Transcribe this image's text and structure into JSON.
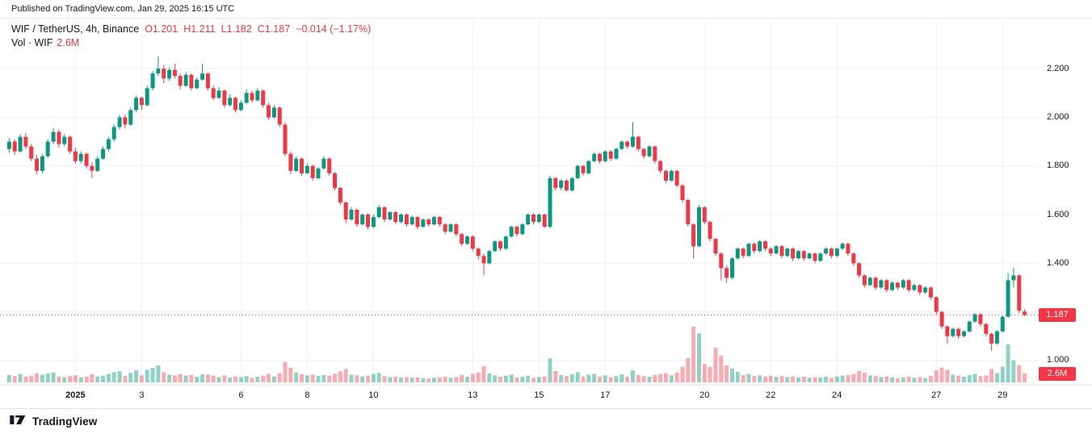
{
  "header": {
    "published": "Published on TradingView.com, Jan 29, 2025 16:15 UTC"
  },
  "legend": {
    "symbol": "WIF / TetherUS, 4h, Binance",
    "ohlc": [
      {
        "label": "O",
        "value": "1.201"
      },
      {
        "label": "H",
        "value": "1.211"
      },
      {
        "label": "L",
        "value": "1.182"
      },
      {
        "label": "C",
        "value": "1.187"
      }
    ],
    "change": "−0.014 (−1.17%)",
    "volume_label": "Vol · WIF",
    "volume_value": "2.6M"
  },
  "badges": {
    "last_price": {
      "label": "1.187",
      "value": 1.187
    },
    "volume": {
      "label": "2.6M"
    }
  },
  "footer": {
    "brand": "TradingView"
  },
  "colors": {
    "up": "#089981",
    "down": "#F23645",
    "vol_up": "rgba(8,153,129,0.45)",
    "vol_down": "rgba(242,54,69,0.42)",
    "grid": "#eef0f3",
    "border": "#e0e3eb",
    "text": "#131722",
    "badge_bg": "#F23645"
  },
  "chart_data": {
    "type": "candlestick",
    "symbol": "WIF / TetherUS",
    "interval": "4h",
    "exchange": "Binance",
    "ohlc_last": {
      "o": 1.201,
      "h": 1.211,
      "l": 1.182,
      "c": 1.187,
      "change": -0.014,
      "change_pct": -1.17
    },
    "volume_last_m": 2.6,
    "volume_unit": "M",
    "price_axis": {
      "range": [
        0.95,
        2.3
      ],
      "gridlines": [
        1.0,
        1.2,
        1.4,
        1.6,
        1.8,
        2.0,
        2.2
      ],
      "labels": [
        {
          "value": 2.2,
          "label": "2.200"
        },
        {
          "value": 2.0,
          "label": "2.000"
        },
        {
          "value": 1.8,
          "label": "1.800"
        },
        {
          "value": 1.6,
          "label": "1.600"
        },
        {
          "value": 1.4,
          "label": "1.400"
        },
        {
          "value": 1.0,
          "label": "1.000"
        }
      ]
    },
    "time_axis": {
      "ticks": [
        {
          "i": 12,
          "label": "2025",
          "bold": true
        },
        {
          "i": 24,
          "label": "3"
        },
        {
          "i": 42,
          "label": "6"
        },
        {
          "i": 54,
          "label": "8"
        },
        {
          "i": 66,
          "label": "10"
        },
        {
          "i": 84,
          "label": "13"
        },
        {
          "i": 96,
          "label": "15"
        },
        {
          "i": 108,
          "label": "17"
        },
        {
          "i": 126,
          "label": "20"
        },
        {
          "i": 138,
          "label": "22"
        },
        {
          "i": 150,
          "label": "24"
        },
        {
          "i": 168,
          "label": "27"
        },
        {
          "i": 180,
          "label": "29"
        }
      ]
    },
    "columns": [
      "open",
      "high",
      "low",
      "close",
      "volume_m"
    ],
    "candles": [
      [
        1.87,
        1.915,
        1.855,
        1.9,
        2.1
      ],
      [
        1.9,
        1.91,
        1.845,
        1.86,
        1.8
      ],
      [
        1.86,
        1.93,
        1.855,
        1.92,
        2.4
      ],
      [
        1.92,
        1.935,
        1.87,
        1.88,
        1.6
      ],
      [
        1.88,
        1.89,
        1.82,
        1.83,
        1.9
      ],
      [
        1.83,
        1.845,
        1.765,
        1.78,
        2.6
      ],
      [
        1.78,
        1.85,
        1.77,
        1.84,
        2.2
      ],
      [
        1.84,
        1.91,
        1.835,
        1.9,
        2.5
      ],
      [
        1.9,
        1.955,
        1.89,
        1.94,
        2.8
      ],
      [
        1.94,
        1.95,
        1.875,
        1.89,
        1.7
      ],
      [
        1.89,
        1.93,
        1.88,
        1.92,
        1.5
      ],
      [
        1.92,
        1.925,
        1.85,
        1.86,
        1.8
      ],
      [
        1.86,
        1.875,
        1.81,
        1.82,
        2.0
      ],
      [
        1.82,
        1.86,
        1.81,
        1.85,
        1.4
      ],
      [
        1.85,
        1.855,
        1.79,
        1.8,
        1.6
      ],
      [
        1.8,
        1.815,
        1.75,
        1.78,
        2.3
      ],
      [
        1.78,
        1.84,
        1.775,
        1.83,
        1.7
      ],
      [
        1.83,
        1.88,
        1.825,
        1.87,
        1.9
      ],
      [
        1.87,
        1.92,
        1.86,
        1.91,
        2.4
      ],
      [
        1.91,
        1.97,
        1.9,
        1.96,
        2.9
      ],
      [
        1.96,
        2.01,
        1.95,
        2.0,
        3.2
      ],
      [
        2.0,
        2.01,
        1.955,
        1.97,
        1.8
      ],
      [
        1.97,
        2.04,
        1.965,
        2.03,
        2.7
      ],
      [
        2.03,
        2.09,
        2.02,
        2.08,
        3.4
      ],
      [
        2.08,
        2.085,
        2.03,
        2.05,
        2.0
      ],
      [
        2.05,
        2.13,
        2.045,
        2.12,
        3.6
      ],
      [
        2.12,
        2.19,
        2.11,
        2.18,
        4.1
      ],
      [
        2.18,
        2.25,
        2.17,
        2.2,
        4.8
      ],
      [
        2.2,
        2.215,
        2.14,
        2.16,
        2.9
      ],
      [
        2.16,
        2.205,
        2.15,
        2.195,
        2.2
      ],
      [
        2.195,
        2.22,
        2.16,
        2.17,
        2.0
      ],
      [
        2.17,
        2.18,
        2.115,
        2.13,
        2.4
      ],
      [
        2.13,
        2.185,
        2.125,
        2.175,
        1.9
      ],
      [
        2.175,
        2.18,
        2.11,
        2.12,
        2.1
      ],
      [
        2.12,
        2.165,
        2.115,
        2.155,
        1.6
      ],
      [
        2.155,
        2.22,
        2.15,
        2.18,
        2.3
      ],
      [
        2.18,
        2.185,
        2.11,
        2.12,
        2.2
      ],
      [
        2.12,
        2.13,
        2.07,
        2.08,
        1.9
      ],
      [
        2.08,
        2.125,
        2.075,
        2.11,
        1.5
      ],
      [
        2.11,
        2.115,
        2.04,
        2.05,
        2.0
      ],
      [
        2.05,
        2.095,
        2.045,
        2.08,
        1.4
      ],
      [
        2.08,
        2.085,
        2.02,
        2.03,
        1.7
      ],
      [
        2.03,
        2.07,
        2.025,
        2.06,
        1.5
      ],
      [
        2.06,
        2.115,
        2.055,
        2.1,
        1.8
      ],
      [
        2.1,
        2.11,
        2.06,
        2.07,
        1.3
      ],
      [
        2.07,
        2.12,
        2.065,
        2.11,
        1.6
      ],
      [
        2.11,
        2.115,
        2.04,
        2.05,
        1.9
      ],
      [
        2.05,
        2.06,
        1.99,
        2.0,
        2.4
      ],
      [
        2.0,
        2.05,
        1.995,
        2.04,
        1.7
      ],
      [
        2.04,
        2.045,
        1.96,
        1.97,
        2.6
      ],
      [
        1.97,
        1.98,
        1.84,
        1.85,
        5.8
      ],
      [
        1.85,
        1.86,
        1.765,
        1.78,
        4.2
      ],
      [
        1.78,
        1.84,
        1.775,
        1.83,
        2.8
      ],
      [
        1.83,
        1.835,
        1.76,
        1.77,
        2.3
      ],
      [
        1.77,
        1.81,
        1.765,
        1.8,
        2.0
      ],
      [
        1.8,
        1.805,
        1.74,
        1.75,
        2.2
      ],
      [
        1.75,
        1.795,
        1.745,
        1.79,
        1.8
      ],
      [
        1.79,
        1.84,
        1.785,
        1.83,
        2.1
      ],
      [
        1.83,
        1.835,
        1.76,
        1.77,
        1.9
      ],
      [
        1.77,
        1.775,
        1.7,
        1.71,
        2.5
      ],
      [
        1.71,
        1.715,
        1.64,
        1.65,
        3.1
      ],
      [
        1.65,
        1.655,
        1.565,
        1.58,
        3.8
      ],
      [
        1.58,
        1.63,
        1.575,
        1.62,
        2.2
      ],
      [
        1.62,
        1.625,
        1.55,
        1.56,
        2.0
      ],
      [
        1.56,
        1.605,
        1.555,
        1.6,
        1.7
      ],
      [
        1.6,
        1.605,
        1.54,
        1.55,
        1.9
      ],
      [
        1.55,
        1.6,
        1.545,
        1.59,
        2.4
      ],
      [
        1.59,
        1.64,
        1.585,
        1.63,
        2.7
      ],
      [
        1.63,
        1.635,
        1.57,
        1.58,
        1.8
      ],
      [
        1.58,
        1.615,
        1.575,
        1.61,
        1.5
      ],
      [
        1.61,
        1.615,
        1.56,
        1.57,
        1.6
      ],
      [
        1.57,
        1.605,
        1.565,
        1.6,
        1.4
      ],
      [
        1.6,
        1.605,
        1.55,
        1.56,
        1.5
      ],
      [
        1.56,
        1.595,
        1.555,
        1.59,
        1.3
      ],
      [
        1.59,
        1.595,
        1.54,
        1.55,
        1.4
      ],
      [
        1.55,
        1.585,
        1.545,
        1.58,
        1.2
      ],
      [
        1.58,
        1.585,
        1.55,
        1.56,
        1.1
      ],
      [
        1.56,
        1.595,
        1.555,
        1.59,
        1.3
      ],
      [
        1.59,
        1.595,
        1.55,
        1.56,
        1.4
      ],
      [
        1.56,
        1.565,
        1.52,
        1.53,
        1.6
      ],
      [
        1.53,
        1.565,
        1.525,
        1.56,
        1.3
      ],
      [
        1.56,
        1.565,
        1.51,
        1.52,
        1.5
      ],
      [
        1.52,
        1.525,
        1.47,
        1.48,
        2.1
      ],
      [
        1.48,
        1.515,
        1.475,
        1.51,
        1.6
      ],
      [
        1.51,
        1.515,
        1.45,
        1.46,
        2.4
      ],
      [
        1.46,
        1.465,
        1.415,
        1.43,
        2.8
      ],
      [
        1.43,
        1.44,
        1.35,
        1.4,
        4.6
      ],
      [
        1.4,
        1.455,
        1.395,
        1.45,
        2.5
      ],
      [
        1.45,
        1.495,
        1.445,
        1.49,
        2.0
      ],
      [
        1.49,
        1.495,
        1.45,
        1.46,
        1.6
      ],
      [
        1.46,
        1.515,
        1.455,
        1.51,
        1.9
      ],
      [
        1.51,
        1.555,
        1.505,
        1.55,
        2.2
      ],
      [
        1.55,
        1.555,
        1.51,
        1.52,
        1.4
      ],
      [
        1.52,
        1.565,
        1.515,
        1.56,
        1.6
      ],
      [
        1.56,
        1.605,
        1.555,
        1.6,
        1.9
      ],
      [
        1.6,
        1.605,
        1.56,
        1.57,
        1.3
      ],
      [
        1.57,
        1.605,
        1.565,
        1.6,
        1.5
      ],
      [
        1.6,
        1.605,
        1.545,
        1.55,
        1.7
      ],
      [
        1.55,
        1.76,
        1.545,
        1.75,
        6.8
      ],
      [
        1.75,
        1.755,
        1.7,
        1.71,
        3.2
      ],
      [
        1.71,
        1.745,
        1.7,
        1.74,
        2.1
      ],
      [
        1.74,
        1.745,
        1.695,
        1.7,
        1.8
      ],
      [
        1.7,
        1.755,
        1.695,
        1.75,
        2.3
      ],
      [
        1.75,
        1.805,
        1.745,
        1.8,
        2.9
      ],
      [
        1.8,
        1.805,
        1.76,
        1.77,
        1.7
      ],
      [
        1.77,
        1.825,
        1.765,
        1.82,
        2.2
      ],
      [
        1.82,
        1.855,
        1.815,
        1.85,
        2.4
      ],
      [
        1.85,
        1.855,
        1.81,
        1.82,
        1.6
      ],
      [
        1.82,
        1.865,
        1.815,
        1.86,
        2.0
      ],
      [
        1.86,
        1.865,
        1.82,
        1.83,
        1.5
      ],
      [
        1.83,
        1.875,
        1.825,
        1.87,
        1.8
      ],
      [
        1.87,
        1.905,
        1.865,
        1.9,
        2.3
      ],
      [
        1.9,
        1.905,
        1.87,
        1.88,
        1.6
      ],
      [
        1.88,
        1.98,
        1.875,
        1.92,
        3.4
      ],
      [
        1.92,
        1.925,
        1.86,
        1.87,
        2.1
      ],
      [
        1.87,
        1.875,
        1.83,
        1.84,
        1.8
      ],
      [
        1.84,
        1.885,
        1.835,
        1.88,
        1.6
      ],
      [
        1.88,
        1.885,
        1.81,
        1.82,
        2.2
      ],
      [
        1.82,
        1.825,
        1.77,
        1.78,
        2.4
      ],
      [
        1.78,
        1.785,
        1.73,
        1.74,
        2.6
      ],
      [
        1.74,
        1.785,
        1.735,
        1.78,
        2.0
      ],
      [
        1.78,
        1.785,
        1.71,
        1.72,
        2.8
      ],
      [
        1.72,
        1.725,
        1.65,
        1.66,
        4.4
      ],
      [
        1.66,
        1.665,
        1.55,
        1.56,
        6.9
      ],
      [
        1.56,
        1.565,
        1.42,
        1.47,
        15.8
      ],
      [
        1.47,
        1.64,
        1.465,
        1.63,
        13.9
      ],
      [
        1.63,
        1.635,
        1.56,
        1.57,
        5.2
      ],
      [
        1.57,
        1.575,
        1.49,
        1.5,
        4.4
      ],
      [
        1.5,
        1.505,
        1.43,
        1.44,
        9.8
      ],
      [
        1.44,
        1.445,
        1.33,
        1.38,
        7.6
      ],
      [
        1.38,
        1.39,
        1.32,
        1.34,
        4.8
      ],
      [
        1.34,
        1.425,
        1.335,
        1.42,
        3.9
      ],
      [
        1.42,
        1.465,
        1.415,
        1.46,
        3.0
      ],
      [
        1.46,
        1.465,
        1.42,
        1.43,
        2.1
      ],
      [
        1.43,
        1.485,
        1.425,
        1.48,
        2.4
      ],
      [
        1.48,
        1.485,
        1.44,
        1.45,
        1.8
      ],
      [
        1.45,
        1.495,
        1.445,
        1.49,
        2.0
      ],
      [
        1.49,
        1.495,
        1.45,
        1.46,
        1.7
      ],
      [
        1.46,
        1.465,
        1.43,
        1.44,
        1.9
      ],
      [
        1.44,
        1.475,
        1.435,
        1.47,
        1.6
      ],
      [
        1.47,
        1.475,
        1.42,
        1.43,
        1.8
      ],
      [
        1.43,
        1.465,
        1.425,
        1.46,
        1.5
      ],
      [
        1.46,
        1.465,
        1.41,
        1.42,
        1.7
      ],
      [
        1.42,
        1.455,
        1.415,
        1.45,
        1.4
      ],
      [
        1.45,
        1.455,
        1.41,
        1.42,
        1.6
      ],
      [
        1.42,
        1.445,
        1.415,
        1.44,
        1.3
      ],
      [
        1.44,
        1.445,
        1.4,
        1.41,
        1.5
      ],
      [
        1.41,
        1.445,
        1.405,
        1.44,
        1.4
      ],
      [
        1.44,
        1.465,
        1.435,
        1.46,
        1.6
      ],
      [
        1.46,
        1.465,
        1.42,
        1.43,
        1.3
      ],
      [
        1.43,
        1.465,
        1.425,
        1.46,
        1.7
      ],
      [
        1.46,
        1.485,
        1.455,
        1.48,
        1.9
      ],
      [
        1.48,
        1.485,
        1.43,
        1.44,
        2.1
      ],
      [
        1.44,
        1.445,
        1.39,
        1.4,
        2.4
      ],
      [
        1.4,
        1.405,
        1.34,
        1.35,
        3.2
      ],
      [
        1.35,
        1.355,
        1.3,
        1.31,
        2.8
      ],
      [
        1.31,
        1.345,
        1.305,
        1.34,
        2.0
      ],
      [
        1.34,
        1.345,
        1.29,
        1.3,
        1.8
      ],
      [
        1.3,
        1.335,
        1.295,
        1.33,
        1.5
      ],
      [
        1.33,
        1.335,
        1.28,
        1.29,
        1.7
      ],
      [
        1.29,
        1.325,
        1.285,
        1.32,
        1.4
      ],
      [
        1.32,
        1.325,
        1.29,
        1.3,
        1.2
      ],
      [
        1.3,
        1.335,
        1.295,
        1.33,
        1.4
      ],
      [
        1.33,
        1.335,
        1.28,
        1.29,
        1.6
      ],
      [
        1.29,
        1.315,
        1.285,
        1.31,
        1.3
      ],
      [
        1.31,
        1.315,
        1.27,
        1.28,
        1.5
      ],
      [
        1.28,
        1.305,
        1.275,
        1.3,
        1.2
      ],
      [
        1.3,
        1.305,
        1.25,
        1.26,
        1.8
      ],
      [
        1.26,
        1.265,
        1.19,
        1.2,
        3.4
      ],
      [
        1.2,
        1.205,
        1.13,
        1.14,
        4.2
      ],
      [
        1.14,
        1.145,
        1.07,
        1.1,
        3.6
      ],
      [
        1.1,
        1.135,
        1.095,
        1.13,
        2.2
      ],
      [
        1.13,
        1.135,
        1.09,
        1.1,
        1.9
      ],
      [
        1.1,
        1.125,
        1.095,
        1.12,
        1.6
      ],
      [
        1.12,
        1.165,
        1.115,
        1.16,
        2.1
      ],
      [
        1.16,
        1.195,
        1.155,
        1.19,
        2.4
      ],
      [
        1.19,
        1.195,
        1.14,
        1.15,
        1.8
      ],
      [
        1.15,
        1.155,
        1.1,
        1.11,
        2.0
      ],
      [
        1.11,
        1.115,
        1.04,
        1.07,
        3.8
      ],
      [
        1.07,
        1.125,
        1.065,
        1.12,
        2.6
      ],
      [
        1.12,
        1.185,
        1.115,
        1.18,
        4.4
      ],
      [
        1.18,
        1.36,
        1.175,
        1.33,
        10.8
      ],
      [
        1.33,
        1.38,
        1.3,
        1.35,
        6.2
      ],
      [
        1.35,
        1.355,
        1.195,
        1.205,
        4.9
      ],
      [
        1.201,
        1.211,
        1.182,
        1.187,
        2.6
      ]
    ]
  }
}
